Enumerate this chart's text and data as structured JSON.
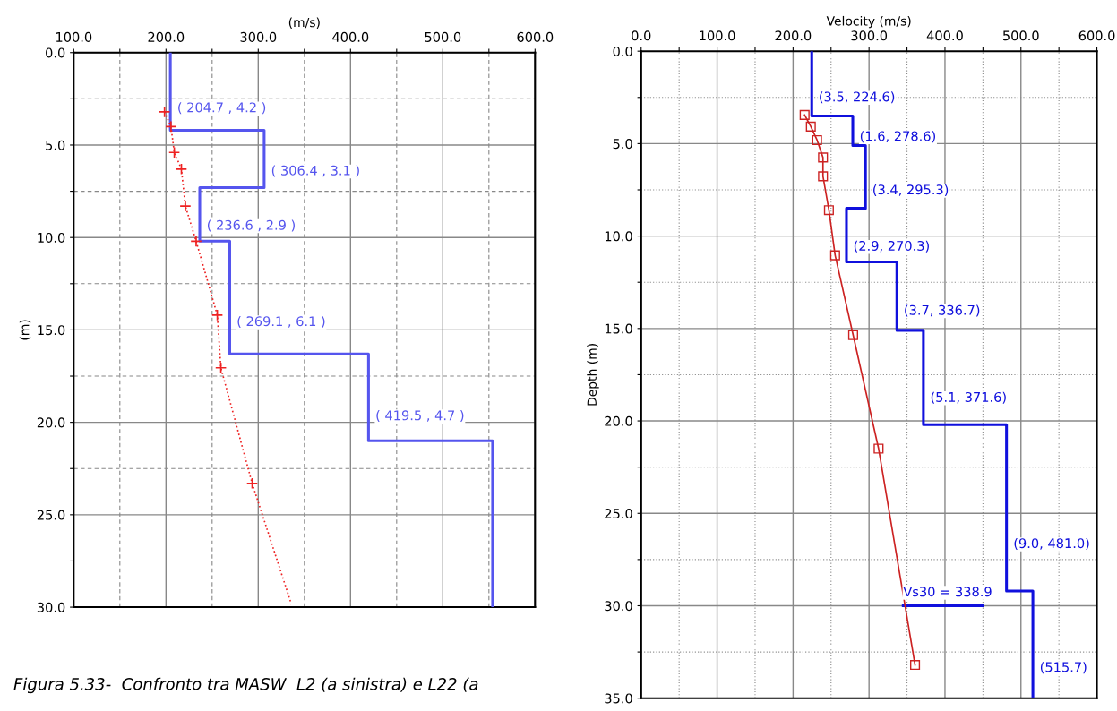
{
  "chart_data": [
    {
      "type": "line",
      "xlabel": "(m/s)",
      "ylabel": "(m)",
      "grid": true,
      "xlim": [
        100,
        600
      ],
      "ylim": [
        30,
        0
      ],
      "xticks": [
        {
          "value": 100,
          "label": "100.0"
        },
        {
          "value": 150,
          "label": null
        },
        {
          "value": 200,
          "label": "200.0"
        },
        {
          "value": 250,
          "label": null
        },
        {
          "value": 300,
          "label": "300.0"
        },
        {
          "value": 350,
          "label": null
        },
        {
          "value": 400,
          "label": "400.0"
        },
        {
          "value": 450,
          "label": null
        },
        {
          "value": 500,
          "label": "500.0"
        },
        {
          "value": 550,
          "label": null
        },
        {
          "value": 600,
          "label": "600.0"
        }
      ],
      "yticks": [
        {
          "value": 0,
          "label": "0.0"
        },
        {
          "value": 2.5,
          "label": null
        },
        {
          "value": 5,
          "label": "5.0"
        },
        {
          "value": 7.5,
          "label": null
        },
        {
          "value": 10,
          "label": "10.0"
        },
        {
          "value": 12.5,
          "label": null
        },
        {
          "value": 15,
          "label": "15.0"
        },
        {
          "value": 17.5,
          "label": null
        },
        {
          "value": 20,
          "label": "20.0"
        },
        {
          "value": 22.5,
          "label": null
        },
        {
          "value": 25,
          "label": "25.0"
        },
        {
          "value": 27.5,
          "label": null
        },
        {
          "value": 30,
          "label": "30.0"
        }
      ],
      "series": [
        {
          "color": "#5555ee",
          "line_style": "solid",
          "x": [
            204.7,
            204.7,
            306.4,
            306.4,
            236.6,
            236.6,
            269.1,
            269.1,
            419.5,
            419.5,
            554,
            554
          ],
          "values": [
            0,
            4.2,
            4.2,
            7.3,
            7.3,
            10.2,
            10.2,
            16.3,
            16.3,
            21.0,
            21.0,
            30
          ]
        },
        {
          "color": "#ee2222",
          "line_style": "dotted",
          "x": [
            198.4,
            205.4,
            209,
            216.7,
            221,
            232.7,
            255.6,
            259.5,
            293.4,
            336
          ],
          "values": [
            3.2,
            4.0,
            5.4,
            6.3,
            8.3,
            10.2,
            14.2,
            17.05,
            23.3,
            29.85
          ]
        },
        {
          "type": "scatter",
          "color": "#ee2222",
          "marker": "cross",
          "x": [
            198.4,
            205.4,
            209,
            216.7,
            221,
            232.7,
            255.6,
            259.5,
            293.4
          ],
          "values": [
            3.2,
            4.0,
            5.4,
            6.3,
            8.3,
            10.2,
            14.2,
            17.05,
            23.3
          ]
        }
      ],
      "annotations": [
        "( 204.7 , 4.2 )",
        "( 306.4 , 3.1 )",
        "( 236.6 , 2.9 )",
        "( 269.1 , 6.1 )",
        "( 419.5 , 4.7 )"
      ]
    },
    {
      "type": "line",
      "xlabel": "Velocity (m/s)",
      "ylabel": "Depth (m)",
      "grid": true,
      "xlim": [
        0,
        600
      ],
      "ylim": [
        35,
        0
      ],
      "xticks": [
        {
          "value": 0,
          "label": "0.0"
        },
        {
          "value": 50,
          "label": null
        },
        {
          "value": 100,
          "label": "100.0"
        },
        {
          "value": 150,
          "label": null
        },
        {
          "value": 200,
          "label": "200.0"
        },
        {
          "value": 250,
          "label": null
        },
        {
          "value": 300,
          "label": "300.0"
        },
        {
          "value": 350,
          "label": null
        },
        {
          "value": 400,
          "label": "400.0"
        },
        {
          "value": 450,
          "label": null
        },
        {
          "value": 500,
          "label": "500.0"
        },
        {
          "value": 550,
          "label": null
        },
        {
          "value": 600,
          "label": "600.0"
        }
      ],
      "yticks": [
        {
          "value": 0,
          "label": "0.0"
        },
        {
          "value": 2.5,
          "label": null
        },
        {
          "value": 5,
          "label": "5.0"
        },
        {
          "value": 7.5,
          "label": null
        },
        {
          "value": 10,
          "label": "10.0"
        },
        {
          "value": 12.5,
          "label": null
        },
        {
          "value": 15,
          "label": "15.0"
        },
        {
          "value": 17.5,
          "label": null
        },
        {
          "value": 20,
          "label": "20.0"
        },
        {
          "value": 22.5,
          "label": null
        },
        {
          "value": 25,
          "label": "25.0"
        },
        {
          "value": 27.5,
          "label": null
        },
        {
          "value": 30,
          "label": "30.0"
        },
        {
          "value": 32.5,
          "label": null
        },
        {
          "value": 35,
          "label": "35.0"
        }
      ],
      "series": [
        {
          "color": "#1010dd",
          "line_style": "solid",
          "x": [
            224.6,
            224.6,
            278.6,
            278.6,
            295.3,
            295.3,
            270.3,
            270.3,
            336.7,
            336.7,
            371.6,
            371.6,
            481.0,
            481.0,
            515.7,
            515.7
          ],
          "values": [
            0,
            3.5,
            3.5,
            5.1,
            5.1,
            8.5,
            8.5,
            11.4,
            11.4,
            15.1,
            15.1,
            20.2,
            20.2,
            29.2,
            29.2,
            35
          ]
        },
        {
          "color": "#1010dd",
          "line_style": "solid",
          "x": [
            345,
            450
          ],
          "values": [
            30,
            30
          ]
        },
        {
          "color": "#cc2222",
          "line_style": "solid",
          "marker": "square",
          "x": [
            215.2,
            223.4,
            231.6,
            239.4,
            239.4,
            247.2,
            255.4,
            279.1,
            312.6,
            360.6
          ],
          "values": [
            3.45,
            4.08,
            4.81,
            5.75,
            6.77,
            8.6,
            11.04,
            15.36,
            21.5,
            33.2
          ]
        }
      ],
      "annotations": [
        "(3.5, 224.6)",
        "(1.6, 278.6)",
        "(3.4, 295.3)",
        "(2.9, 270.3)",
        "(3.7, 336.7)",
        "(5.1, 371.6)",
        "(9.0, 481.0)",
        "(515.7)",
        "Vs30 = 338.9"
      ]
    },
    {
      "type": "other",
      "annotations": [
        "Figura 5.33-  Confronto tra MASW  L2 (a sinistra) e L22 (a"
      ]
    }
  ]
}
